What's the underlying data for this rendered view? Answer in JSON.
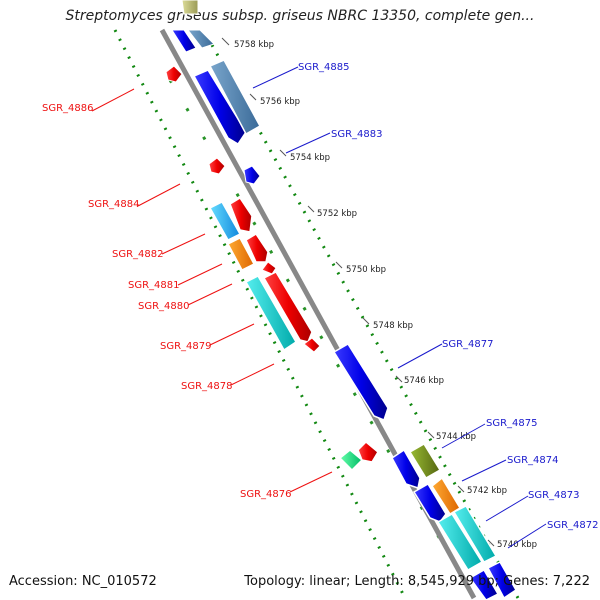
{
  "title": "Streptomyces griseus subsp. griseus NBRC 13350, complete gen...",
  "footer": {
    "accession": "Accession: NC_010572",
    "summary": "Topology: linear; Length: 8,545,929 bp; Genes: 7,222"
  },
  "ticks": [
    "5758 kbp",
    "5756 kbp",
    "5754 kbp",
    "5752 kbp",
    "5750 kbp",
    "5748 kbp",
    "5746 kbp",
    "5744 kbp",
    "5742 kbp",
    "5740 kbp"
  ],
  "genes": [
    {
      "label": "SGR_4886",
      "color": "#ee1111"
    },
    {
      "label": "SGR_4885",
      "color": "#1a1acc"
    },
    {
      "label": "SGR_4884",
      "color": "#ee1111"
    },
    {
      "label": "SGR_4883",
      "color": "#1a1acc"
    },
    {
      "label": "SGR_4882",
      "color": "#ee1111"
    },
    {
      "label": "SGR_4881",
      "color": "#ee1111"
    },
    {
      "label": "SGR_4880",
      "color": "#ee1111"
    },
    {
      "label": "SGR_4879",
      "color": "#ee1111"
    },
    {
      "label": "SGR_4878",
      "color": "#ee1111"
    },
    {
      "label": "SGR_4877",
      "color": "#1a1acc"
    },
    {
      "label": "SGR_4876",
      "color": "#ee1111"
    },
    {
      "label": "SGR_4875",
      "color": "#1a1acc"
    },
    {
      "label": "SGR_4874",
      "color": "#1a1acc"
    },
    {
      "label": "SGR_4873",
      "color": "#1a1acc"
    },
    {
      "label": "SGR_4872",
      "color": "#1a1acc"
    }
  ]
}
